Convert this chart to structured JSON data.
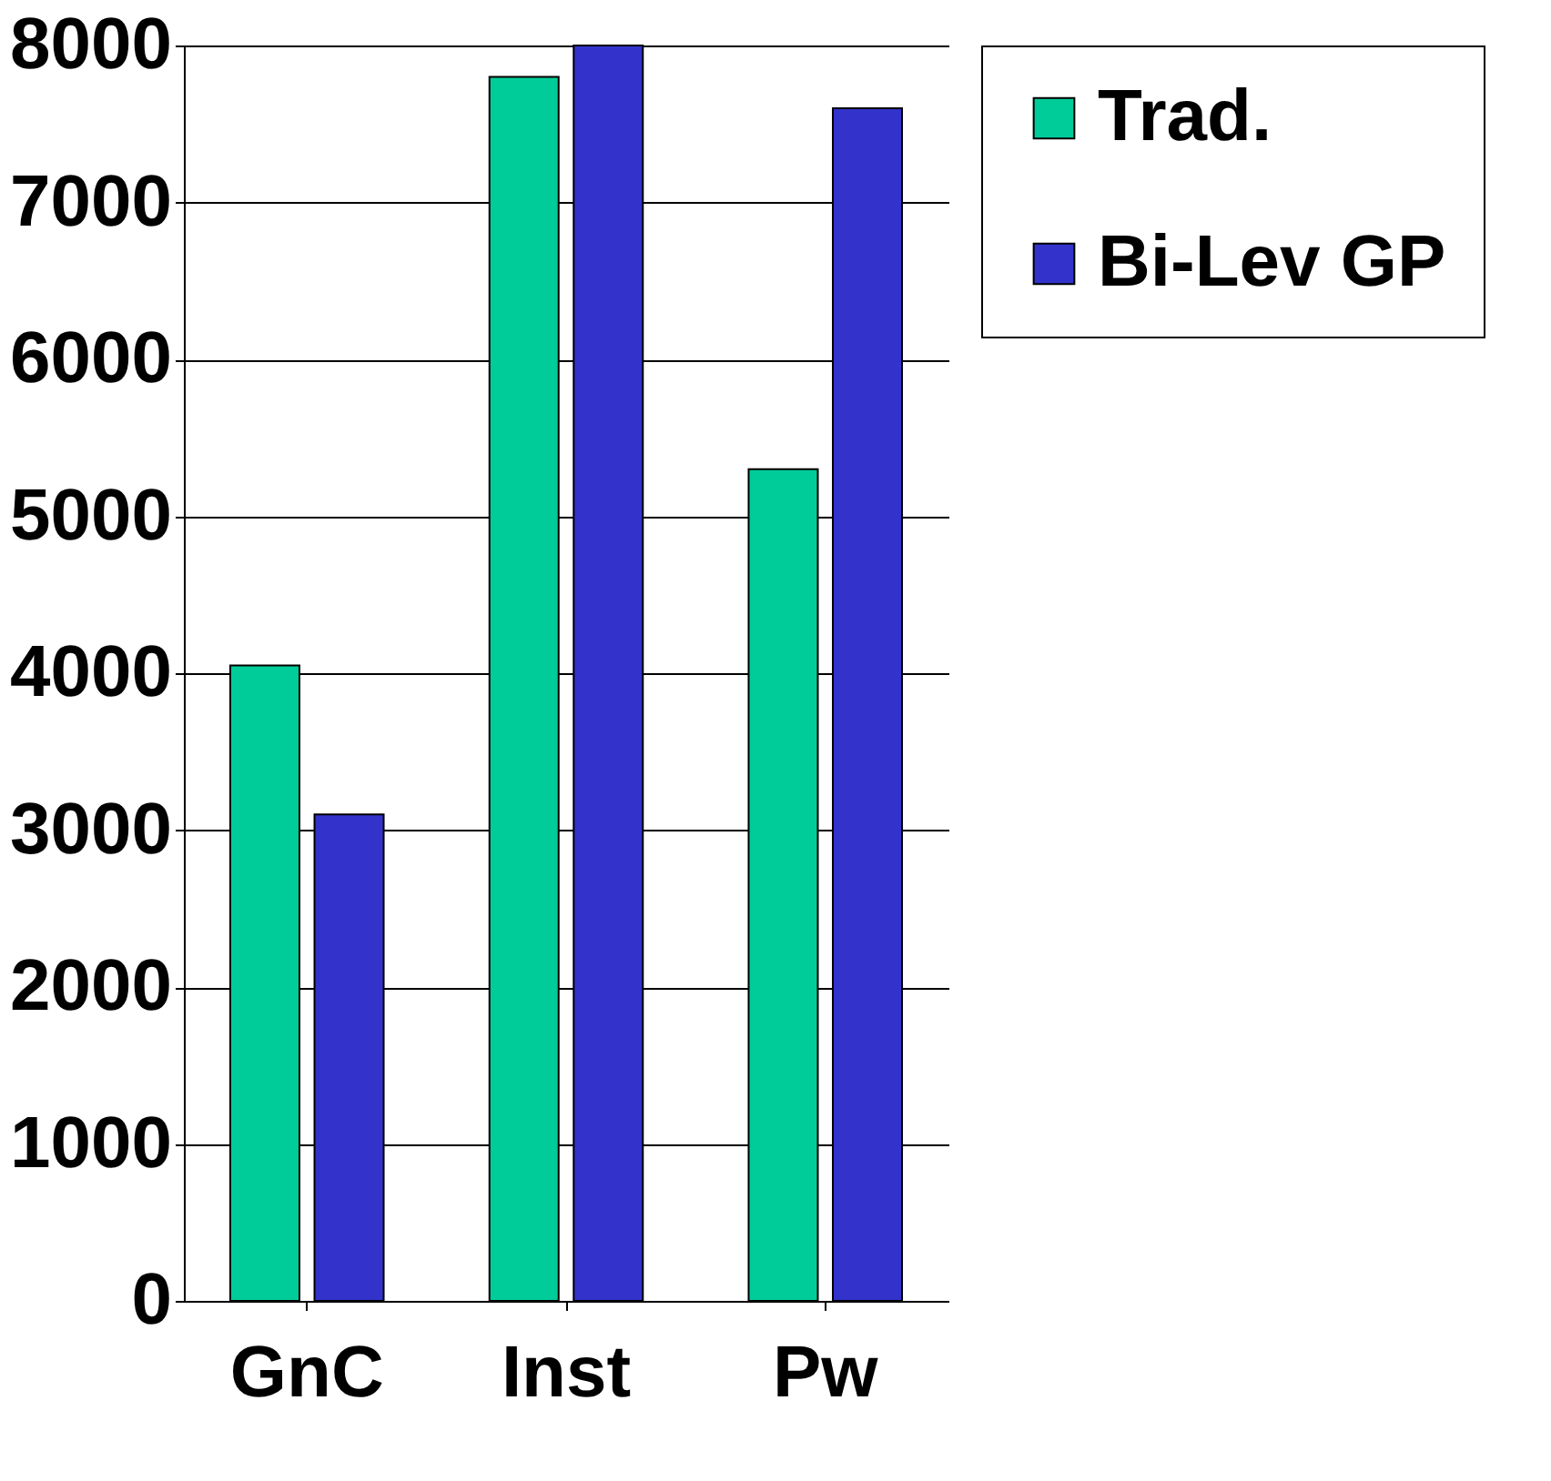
{
  "chart_data": {
    "type": "bar",
    "categories": [
      "GnC",
      "Inst",
      "Pw"
    ],
    "series": [
      {
        "name": "Trad.",
        "color": "#00cc99",
        "values": [
          4050,
          7800,
          5300
        ]
      },
      {
        "name": "Bi-Lev GP",
        "color": "#3333cc",
        "values": [
          3100,
          8000,
          7600
        ]
      }
    ],
    "ylim": [
      0,
      8000
    ],
    "yticks": [
      0,
      1000,
      2000,
      3000,
      4000,
      5000,
      6000,
      7000,
      8000
    ],
    "grid": "y",
    "legend": "right"
  }
}
